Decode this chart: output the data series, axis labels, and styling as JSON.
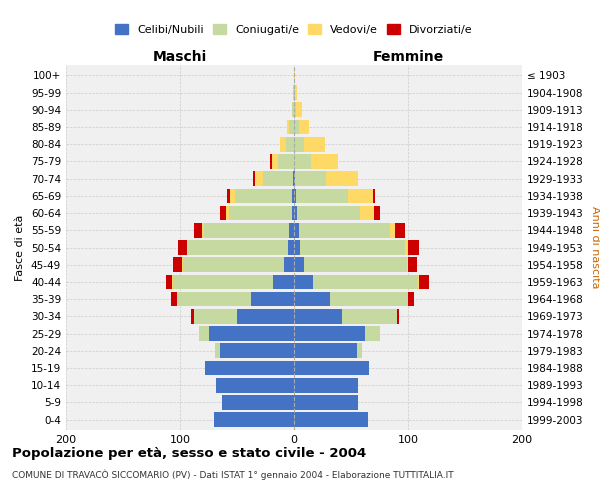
{
  "age_groups": [
    "0-4",
    "5-9",
    "10-14",
    "15-19",
    "20-24",
    "25-29",
    "30-34",
    "35-39",
    "40-44",
    "45-49",
    "50-54",
    "55-59",
    "60-64",
    "65-69",
    "70-74",
    "75-79",
    "80-84",
    "85-89",
    "90-94",
    "95-99",
    "100+"
  ],
  "birth_years": [
    "1999-2003",
    "1994-1998",
    "1989-1993",
    "1984-1988",
    "1979-1983",
    "1974-1978",
    "1969-1973",
    "1964-1968",
    "1959-1963",
    "1954-1958",
    "1949-1953",
    "1944-1948",
    "1939-1943",
    "1934-1938",
    "1929-1933",
    "1924-1928",
    "1919-1923",
    "1914-1918",
    "1909-1913",
    "1904-1908",
    "≤ 1903"
  ],
  "males": {
    "celibi": [
      70,
      63,
      68,
      78,
      65,
      75,
      50,
      38,
      18,
      9,
      5,
      4,
      2,
      2,
      1,
      0,
      0,
      0,
      0,
      0,
      0
    ],
    "coniugati": [
      0,
      0,
      0,
      0,
      4,
      8,
      38,
      65,
      88,
      88,
      88,
      75,
      55,
      50,
      26,
      14,
      7,
      4,
      2,
      1,
      0
    ],
    "vedovi": [
      0,
      0,
      0,
      0,
      0,
      0,
      0,
      0,
      1,
      1,
      1,
      2,
      3,
      4,
      7,
      5,
      5,
      2,
      0,
      0,
      0
    ],
    "divorziati": [
      0,
      0,
      0,
      0,
      0,
      0,
      2,
      5,
      5,
      8,
      8,
      7,
      5,
      3,
      2,
      2,
      0,
      0,
      0,
      0,
      0
    ]
  },
  "females": {
    "nubili": [
      65,
      56,
      56,
      66,
      55,
      62,
      42,
      32,
      17,
      9,
      5,
      4,
      3,
      2,
      1,
      0,
      0,
      0,
      0,
      0,
      0
    ],
    "coniugate": [
      0,
      0,
      0,
      0,
      5,
      13,
      48,
      68,
      92,
      90,
      92,
      80,
      55,
      45,
      27,
      15,
      9,
      4,
      2,
      1,
      0
    ],
    "vedove": [
      0,
      0,
      0,
      0,
      0,
      0,
      0,
      0,
      1,
      1,
      3,
      5,
      12,
      22,
      28,
      24,
      18,
      9,
      5,
      2,
      1
    ],
    "divorziate": [
      0,
      0,
      0,
      0,
      0,
      0,
      2,
      5,
      8,
      8,
      10,
      8,
      5,
      2,
      0,
      0,
      0,
      0,
      0,
      0,
      0
    ]
  },
  "colors": {
    "celibi": "#4472C4",
    "coniugati": "#c5d9a0",
    "vedovi": "#FFD966",
    "divorziati": "#CC0000"
  },
  "legend_labels": [
    "Celibi/Nubili",
    "Coniugati/e",
    "Vedovi/e",
    "Divorziati/e"
  ],
  "title": "Popolazione per età, sesso e stato civile - 2004",
  "subtitle": "COMUNE DI TRAVACÒ SICCOMARIO (PV) - Dati ISTAT 1° gennaio 2004 - Elaborazione TUTTITALIA.IT",
  "xlabel_left": "Maschi",
  "xlabel_right": "Femmine",
  "ylabel": "Fasce di età",
  "ylabel_right": "Anni di nascita",
  "xlim": 200,
  "background_color": "#ffffff",
  "plot_bg": "#f0f0f0",
  "grid_color": "#cccccc"
}
